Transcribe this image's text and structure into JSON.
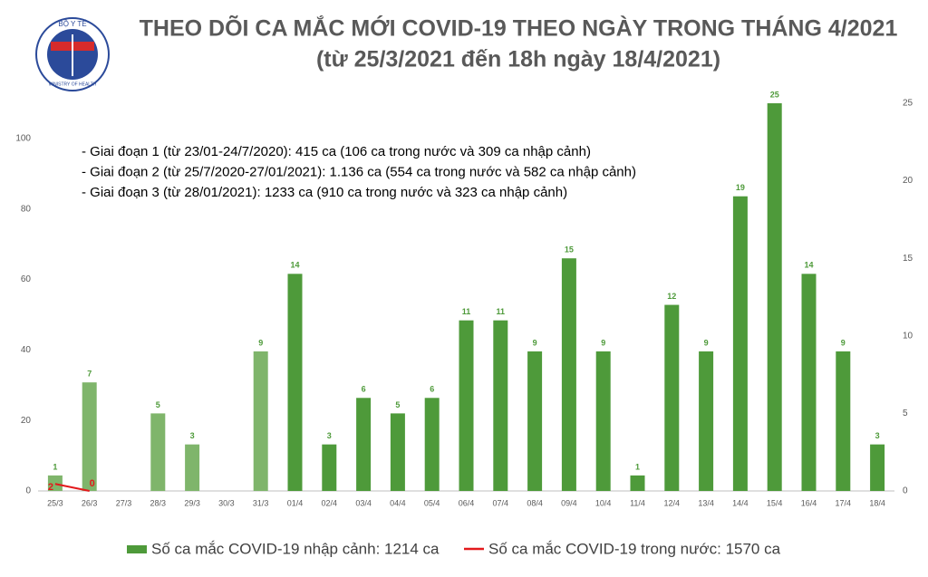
{
  "logo": {
    "top": "BỘ Y TẾ",
    "bottom": "MINISTRY OF HEALTH"
  },
  "chart_data": {
    "type": "bar",
    "title": "THEO DÕI CA MẮC MỚI COVID-19 THEO NGÀY TRONG THÁNG 4/2021",
    "subtitle": "(từ 25/3/2021 đến 18h ngày 18/4/2021)",
    "annotations": [
      "- Giai đoạn 1 (từ 23/01-24/7/2020): 415 ca (106 ca trong nước và 309 ca nhập cảnh)",
      "- Giai đoạn 2 (từ 25/7/2020-27/01/2021): 1.136 ca (554 ca trong nước và 582 ca nhập cảnh)",
      "- Giai đoạn 3 (từ 28/01/2021): 1233 ca (910 ca trong nước và 323 ca nhập cảnh)"
    ],
    "categories": [
      "25/3",
      "26/3",
      "27/3",
      "28/3",
      "29/3",
      "30/3",
      "31/3",
      "01/4",
      "02/4",
      "03/4",
      "04/4",
      "05/4",
      "06/4",
      "07/4",
      "08/4",
      "09/4",
      "10/4",
      "11/4",
      "12/4",
      "13/4",
      "14/4",
      "15/4",
      "16/4",
      "17/4",
      "18/4"
    ],
    "series": [
      {
        "name": "Số ca mắc COVID-19 nhập cảnh: 1214 ca",
        "type": "bar",
        "axis": "y2",
        "color": "#4e9a3a",
        "colors": [
          "#7fb56b",
          "#7fb56b",
          "#7fb56b",
          "#7fb56b",
          "#7fb56b",
          "#7fb56b",
          "#7fb56b",
          "#4e9a3a",
          "#4e9a3a",
          "#4e9a3a",
          "#4e9a3a",
          "#4e9a3a",
          "#4e9a3a",
          "#4e9a3a",
          "#4e9a3a",
          "#4e9a3a",
          "#4e9a3a",
          "#4e9a3a",
          "#4e9a3a",
          "#4e9a3a",
          "#4e9a3a",
          "#4e9a3a",
          "#4e9a3a",
          "#4e9a3a",
          "#4e9a3a"
        ],
        "values": [
          1,
          7,
          null,
          5,
          3,
          null,
          9,
          14,
          3,
          6,
          5,
          6,
          11,
          11,
          9,
          15,
          9,
          1,
          12,
          9,
          19,
          25,
          14,
          9,
          3
        ]
      },
      {
        "name": "Số ca mắc COVID-19 trong nước: 1570 ca",
        "type": "line",
        "axis": "y",
        "color": "#e3191c",
        "values": [
          2,
          0,
          null,
          null,
          null,
          null,
          null,
          null,
          null,
          null,
          null,
          null,
          null,
          null,
          null,
          null,
          null,
          null,
          null,
          null,
          null,
          null,
          null,
          null,
          null
        ]
      }
    ],
    "ylim": [
      0,
      110
    ],
    "yticks": [
      0,
      20,
      40,
      60,
      80,
      100
    ],
    "y2lim": [
      0,
      25
    ],
    "y2ticks": [
      0,
      5,
      10,
      15,
      20,
      25
    ],
    "grid": false
  }
}
